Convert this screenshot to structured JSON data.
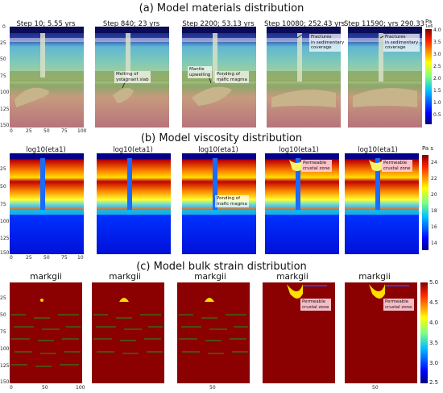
{
  "sections": [
    {
      "title": "(a) Model materials distribution",
      "panels": [
        {
          "title": "Step 10; 5.55 yrs",
          "annotations": []
        },
        {
          "title": "Step 840; 23 yrs",
          "annotations": [
            "Melting of\nystagnant slab"
          ]
        },
        {
          "title": "Step 2200; 53.13 yrs",
          "annotations": [
            "Mantle\nupwelling",
            "Ponding of\nmafic magma"
          ]
        },
        {
          "title": "Step 10080; 252.43 yrs",
          "annotations": [
            "Fractures\nin sedimentary\ncoverage"
          ]
        },
        {
          "title": "Step 11590; yrs 290.33",
          "annotations": [
            "Fractures\nin sedimentary\ncoverage"
          ]
        }
      ],
      "colorbar": {
        "unit": "Pa",
        "exponent": "1e6",
        "ticks": [
          "4.0",
          "3.5",
          "3.0",
          "2.5",
          "2.0",
          "1.5",
          "1.0",
          "0.5"
        ]
      }
    },
    {
      "title": "(b) Model viscosity distribution",
      "panels": [
        {
          "title": "log10(eta1)",
          "annotations": []
        },
        {
          "title": "log10(eta1)",
          "annotations": []
        },
        {
          "title": "log10(eta1)",
          "annotations": [
            "Ponding of\nmafic magma"
          ]
        },
        {
          "title": "log10(eta1)",
          "annotations": [
            "Permeable\ncrustal zone"
          ]
        },
        {
          "title": "log10(eta1)",
          "annotations": [
            "Permeable\ncrustal zone"
          ]
        }
      ],
      "colorbar": {
        "unit": "Pa s",
        "ticks": [
          "24",
          "22",
          "20",
          "18",
          "16",
          "14"
        ]
      }
    },
    {
      "title": "(c) Model bulk strain distribution",
      "panels": [
        {
          "title": "markgii",
          "annotations": []
        },
        {
          "title": "markgii",
          "annotations": []
        },
        {
          "title": "markgii",
          "annotations": []
        },
        {
          "title": "markgii",
          "annotations": [
            "Permeable\ncrustal zone"
          ]
        },
        {
          "title": "markgii",
          "annotations": [
            "Permeable\ncrustal zone"
          ]
        }
      ],
      "colorbar": {
        "ticks": [
          "5.0",
          "4.5",
          "4.0",
          "3.5",
          "3.0",
          "2.5"
        ]
      }
    }
  ],
  "axes": {
    "y_ticks_a": [
      "0",
      "25",
      "50",
      "75",
      "100",
      "125",
      "150"
    ],
    "y_ticks_b": [
      "0",
      "25",
      "50",
      "75",
      "100",
      "125",
      "150"
    ],
    "y_ticks_c": [
      "0",
      "25",
      "50",
      "75",
      "100",
      "125",
      "150"
    ],
    "x_ticks": [
      "0",
      "25",
      "50",
      "75",
      "100"
    ],
    "x_ticks_b1": [
      "0",
      "25",
      "50",
      "75",
      "10"
    ],
    "x_ticks_c": [
      "0",
      "50",
      "100"
    ]
  }
}
